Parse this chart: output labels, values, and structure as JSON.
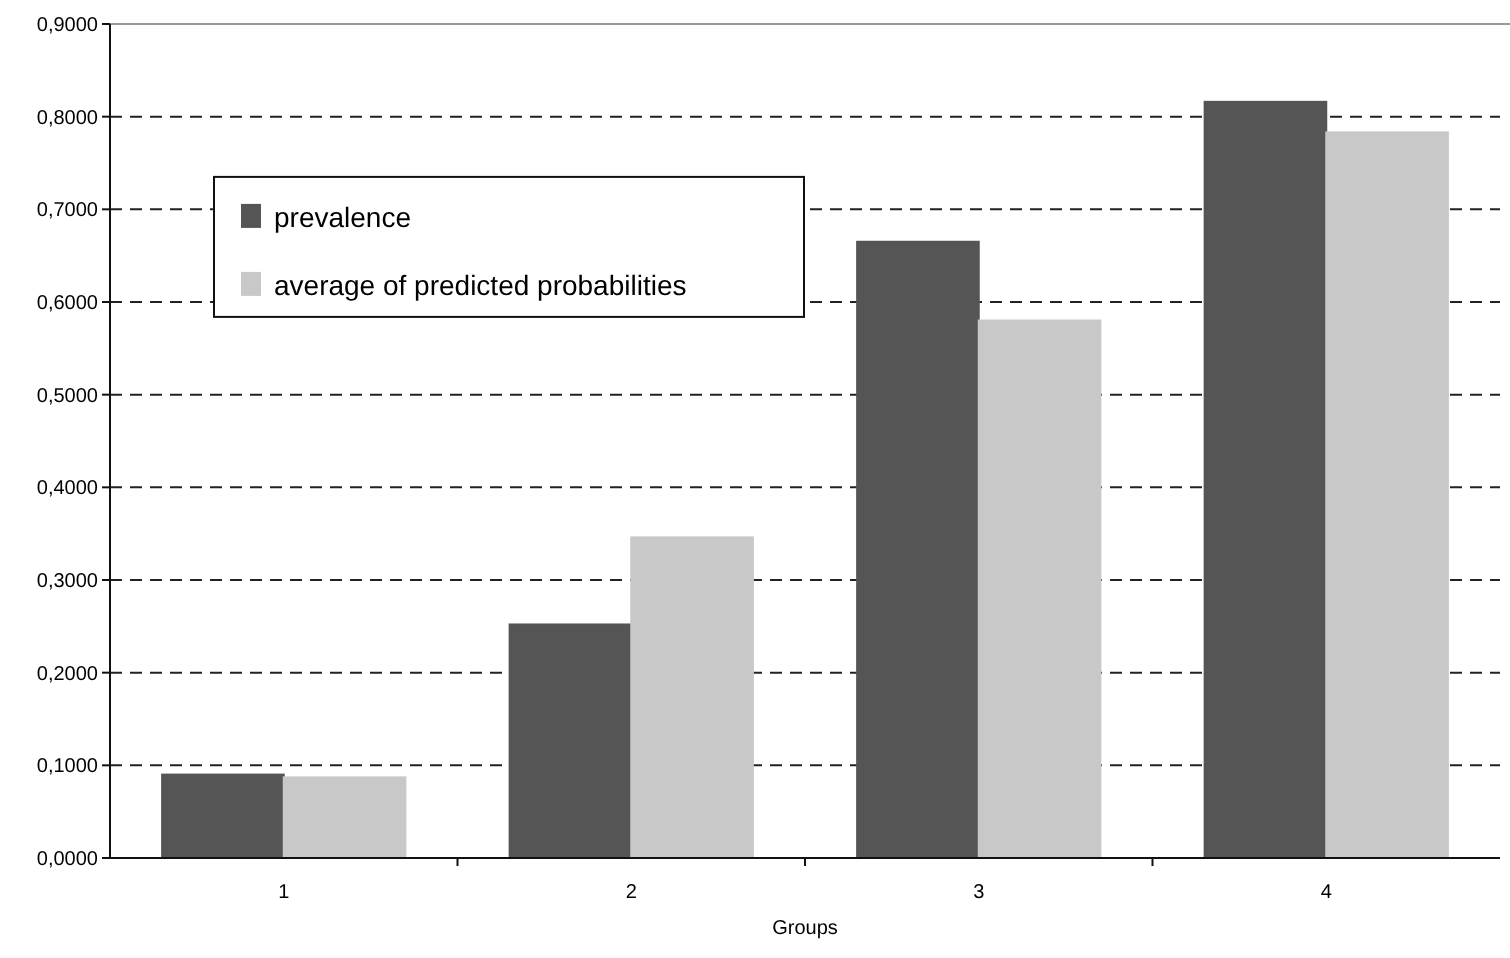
{
  "chart_data": {
    "type": "bar",
    "xlabel": "Groups",
    "categories": [
      "1",
      "2",
      "3",
      "4"
    ],
    "series": [
      {
        "name": "prevalence",
        "color": "#555555",
        "values": [
          0.09,
          0.252,
          0.665,
          0.816
        ]
      },
      {
        "name": "average of predicted probabilities",
        "color": "#c8c8c8",
        "values": [
          0.087,
          0.346,
          0.58,
          0.783
        ]
      }
    ],
    "ylim": [
      0,
      0.9
    ],
    "yticks": [
      {
        "value": 0,
        "label": "0,0000"
      },
      {
        "value": 0.1,
        "label": "0,1000"
      },
      {
        "value": 0.2,
        "label": "0,2000"
      },
      {
        "value": 0.3,
        "label": "0,3000"
      },
      {
        "value": 0.4,
        "label": "0,4000"
      },
      {
        "value": 0.5,
        "label": "0,5000"
      },
      {
        "value": 0.6,
        "label": "0,6000"
      },
      {
        "value": 0.7,
        "label": "0,7000"
      },
      {
        "value": 0.8,
        "label": "0,8000"
      },
      {
        "value": 0.9,
        "label": "0,9000"
      }
    ],
    "grid": "y",
    "legend": "top left"
  }
}
